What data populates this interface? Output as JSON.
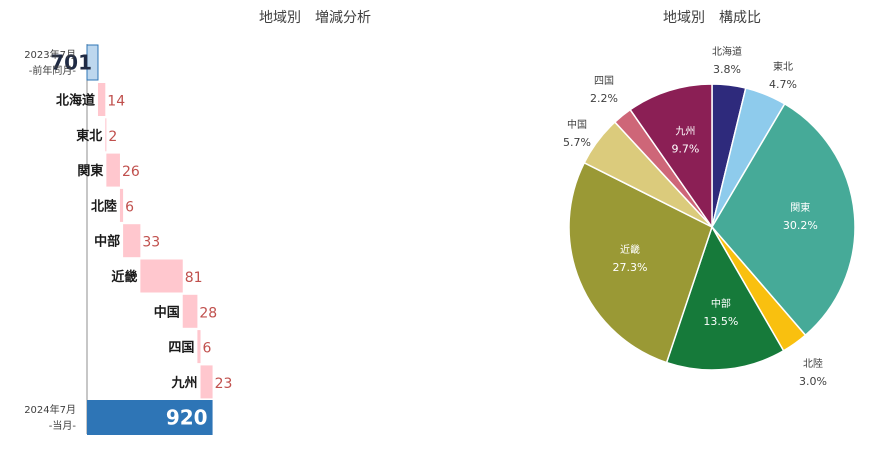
{
  "chart_data": [
    {
      "type": "bar",
      "subtype": "waterfall",
      "title": "地域別　増減分析",
      "start": {
        "label_line1": "2023年7月",
        "label_line2": "-前年同月-",
        "value": 701
      },
      "end": {
        "label_line1": "2024年7月",
        "label_line2": "-当月-",
        "value": 920
      },
      "categories": [
        "北海道",
        "東北",
        "関東",
        "北陸",
        "中部",
        "近畿",
        "中国",
        "四国",
        "九州"
      ],
      "values": [
        14,
        2,
        26,
        6,
        33,
        81,
        28,
        6,
        23
      ],
      "xlim": [
        680,
        930
      ],
      "colors": {
        "start": "#bdd7ee",
        "start_border": "#2e75b6",
        "end": "#2e75b6",
        "increase": "#ffc7ce",
        "increase_text": "#c0504d"
      }
    },
    {
      "type": "pie",
      "title": "地域別　構成比",
      "labels": [
        "北海道",
        "東北",
        "関東",
        "北陸",
        "中部",
        "近畿",
        "中国",
        "四国",
        "九州"
      ],
      "values": [
        3.8,
        4.7,
        30.2,
        3.0,
        13.5,
        27.3,
        5.7,
        2.2,
        9.7
      ],
      "value_labels": [
        "3.8%",
        "4.7%",
        "30.2%",
        "3.0%",
        "13.5%",
        "27.3%",
        "5.7%",
        "2.2%",
        "9.7%"
      ],
      "colors": [
        "#2e2a7c",
        "#8ecbec",
        "#46aa98",
        "#f9c00f",
        "#167a3a",
        "#9a9935",
        "#dbcb7c",
        "#ce6678",
        "#8b1f55"
      ],
      "label_positions": [
        "outside",
        "outside",
        "inside",
        "outside",
        "inside",
        "inside",
        "outside",
        "outside",
        "inside"
      ]
    }
  ]
}
